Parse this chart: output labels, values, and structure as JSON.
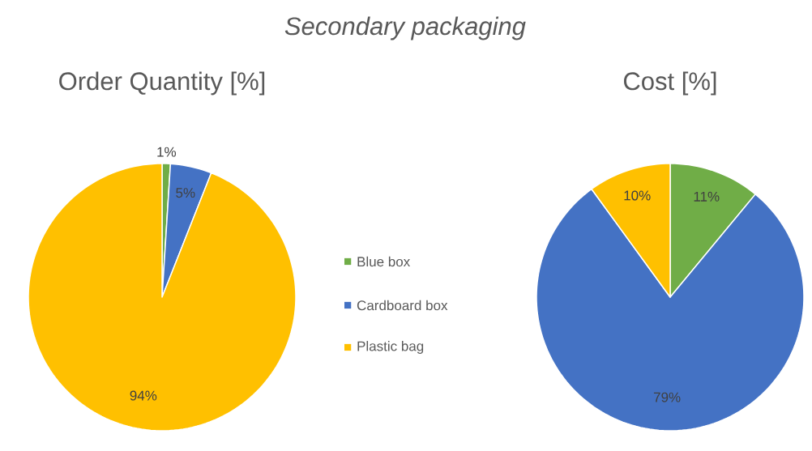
{
  "chart_data": [
    {
      "type": "pie",
      "title": "Order Quantity [%]",
      "annotations": [
        "Secondary packaging"
      ],
      "categories": [
        "Blue box",
        "Cardboard box",
        "Plastic bag"
      ],
      "values": [
        1,
        5,
        94
      ],
      "colors": [
        "#70ad47",
        "#4472c4",
        "#ffc000"
      ],
      "value_labels": [
        "1%",
        "5%",
        "94%"
      ],
      "legend": "right"
    },
    {
      "type": "pie",
      "title": "Cost [%]",
      "categories": [
        null,
        null,
        null
      ],
      "values": [
        11,
        79,
        10
      ],
      "colors": [
        "#70ad47",
        "#4472c4",
        "#ffc000"
      ],
      "value_labels": [
        "11%",
        "79%",
        "10%"
      ]
    }
  ]
}
